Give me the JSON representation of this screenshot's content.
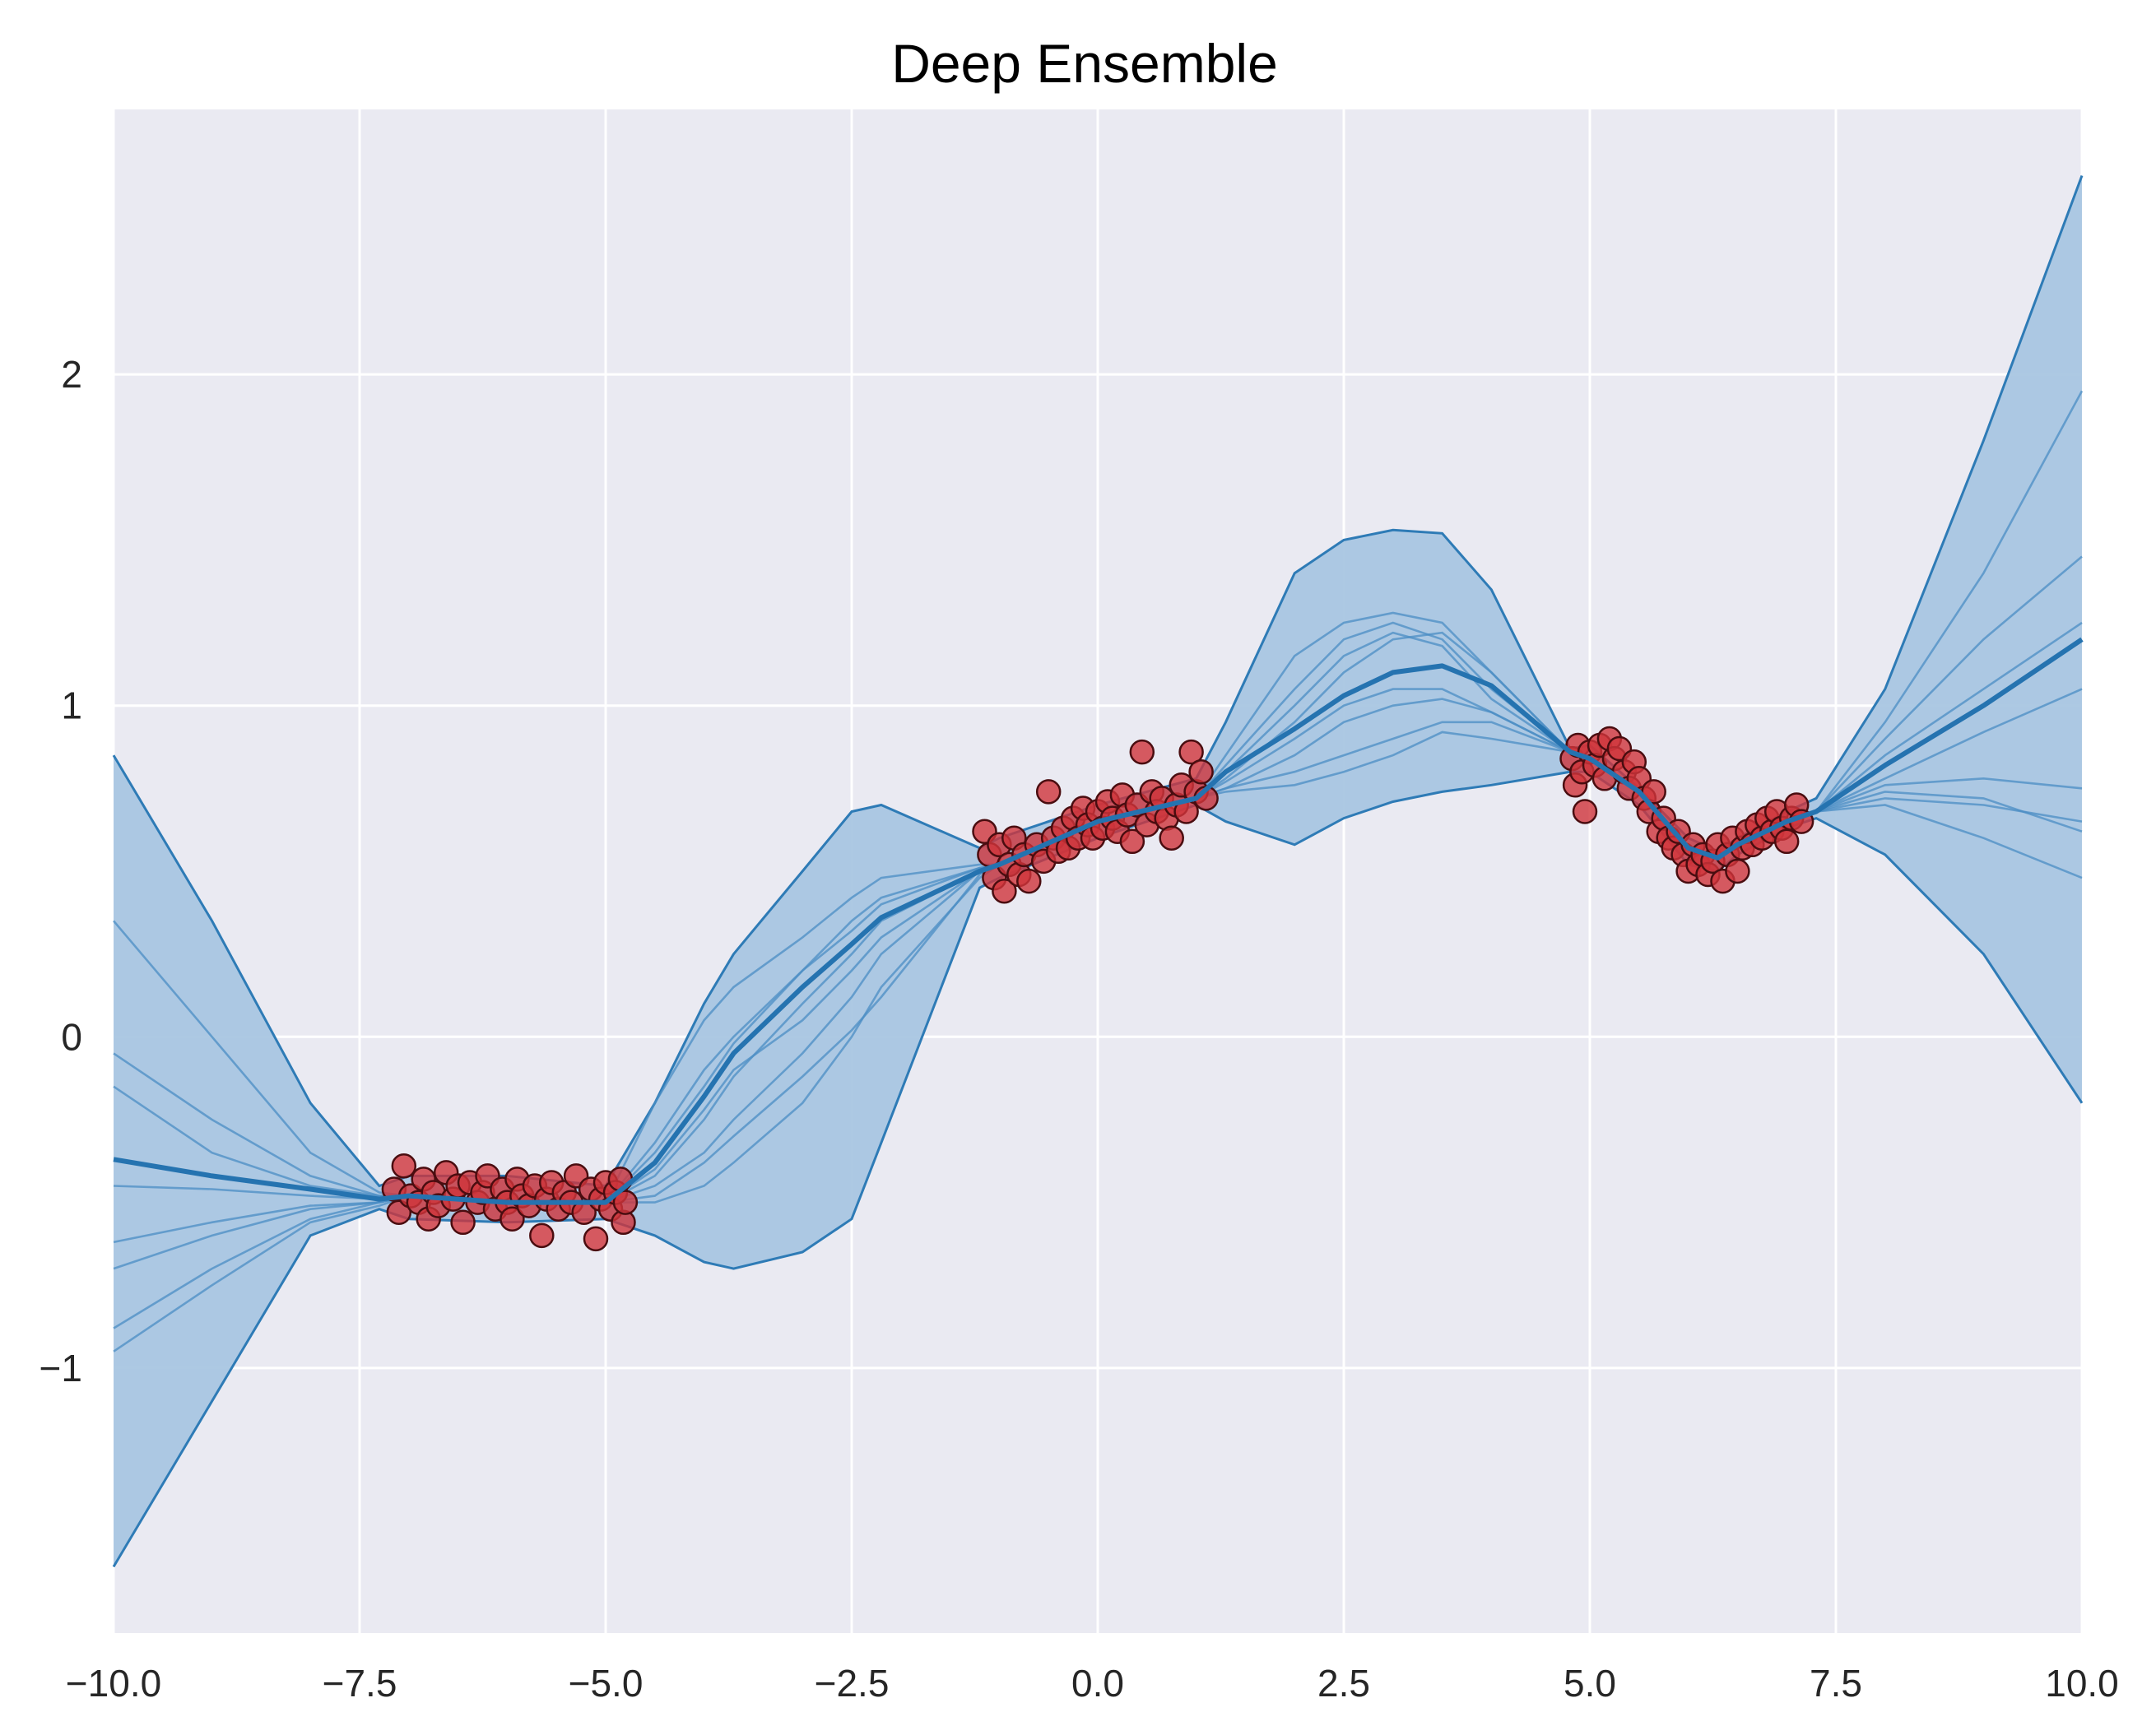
{
  "chart_data": {
    "type": "line",
    "title": "Deep Ensemble",
    "xlabel": "",
    "ylabel": "",
    "xlim": [
      -10,
      10
    ],
    "ylim": [
      -1.8,
      2.8
    ],
    "x_ticks": [
      -10.0,
      -7.5,
      -5.0,
      -2.5,
      0.0,
      2.5,
      5.0,
      7.5,
      10.0
    ],
    "x_tick_labels": [
      "−10.0",
      "−7.5",
      "−5.0",
      "−2.5",
      "0.0",
      "2.5",
      "5.0",
      "7.5",
      "10.0"
    ],
    "y_ticks": [
      -1,
      0,
      1,
      2
    ],
    "y_tick_labels": [
      "−1",
      "0",
      "1",
      "2"
    ],
    "grid": true,
    "legend": "none",
    "colors": {
      "background": "#eaeaf2",
      "grid": "#ffffff",
      "band_fill": "#a9c6e2",
      "band_edge": "#2e7bb6",
      "member_line": "#4b8dc4",
      "mean_line": "#2573b0",
      "point_fill": "#d0353b",
      "point_edge": "#4a0d10",
      "tick_text": "#262626"
    },
    "x": [
      -10,
      -9,
      -8,
      -7.3,
      -7,
      -6,
      -5,
      -4.5,
      -4,
      -3.7,
      -3,
      -2.5,
      -2.2,
      -1.2,
      -1,
      0,
      1,
      1.3,
      2,
      2.5,
      3,
      3.5,
      4,
      4.8,
      5,
      5.5,
      6,
      6.3,
      6.5,
      7,
      7.3,
      8,
      9,
      10
    ],
    "uncertainty_band": {
      "upper": [
        0.85,
        0.35,
        -0.2,
        -0.45,
        -0.42,
        -0.42,
        -0.45,
        -0.2,
        0.1,
        0.25,
        0.5,
        0.68,
        0.7,
        0.57,
        0.6,
        0.7,
        0.78,
        0.95,
        1.4,
        1.5,
        1.53,
        1.52,
        1.35,
        0.87,
        0.88,
        0.75,
        0.6,
        0.56,
        0.6,
        0.68,
        0.72,
        1.05,
        1.8,
        2.6
      ],
      "lower": [
        -1.6,
        -1.1,
        -0.6,
        -0.52,
        -0.55,
        -0.56,
        -0.55,
        -0.6,
        -0.68,
        -0.7,
        -0.65,
        -0.55,
        -0.32,
        0.45,
        0.48,
        0.6,
        0.7,
        0.65,
        0.58,
        0.66,
        0.71,
        0.74,
        0.76,
        0.8,
        0.8,
        0.7,
        0.52,
        0.5,
        0.55,
        0.63,
        0.66,
        0.55,
        0.25,
        -0.2
      ]
    },
    "mean": [
      -0.37,
      -0.42,
      -0.46,
      -0.49,
      -0.48,
      -0.5,
      -0.5,
      -0.38,
      -0.18,
      -0.05,
      0.15,
      0.28,
      0.36,
      0.5,
      0.52,
      0.65,
      0.72,
      0.8,
      0.93,
      1.03,
      1.1,
      1.12,
      1.06,
      0.86,
      0.84,
      0.74,
      0.57,
      0.54,
      0.58,
      0.65,
      0.68,
      0.82,
      1.0,
      1.2
    ],
    "members": [
      [
        -0.05,
        -0.25,
        -0.42,
        -0.48,
        -0.48,
        -0.5,
        -0.5,
        -0.2,
        0.05,
        0.15,
        0.3,
        0.42,
        0.48,
        0.52,
        0.52,
        0.65,
        0.72,
        0.85,
        1.15,
        1.25,
        1.28,
        1.25,
        1.1,
        0.86,
        0.84,
        0.74,
        0.57,
        0.54,
        0.58,
        0.65,
        0.68,
        0.95,
        1.4,
        1.95
      ],
      [
        0.35,
        0.0,
        -0.35,
        -0.47,
        -0.48,
        -0.5,
        -0.5,
        -0.32,
        -0.1,
        0.0,
        0.2,
        0.35,
        0.42,
        0.51,
        0.52,
        0.65,
        0.72,
        0.75,
        0.85,
        0.95,
        1.0,
        1.02,
        0.98,
        0.86,
        0.84,
        0.74,
        0.57,
        0.54,
        0.58,
        0.65,
        0.68,
        0.9,
        1.2,
        1.45
      ],
      [
        -0.15,
        -0.35,
        -0.45,
        -0.48,
        -0.48,
        -0.5,
        -0.5,
        -0.45,
        -0.35,
        -0.25,
        -0.05,
        0.12,
        0.25,
        0.5,
        0.52,
        0.65,
        0.72,
        0.82,
        1.05,
        1.2,
        1.25,
        1.2,
        1.05,
        0.86,
        0.84,
        0.74,
        0.57,
        0.54,
        0.58,
        0.65,
        0.68,
        0.85,
        1.05,
        1.25
      ],
      [
        -0.45,
        -0.46,
        -0.48,
        -0.49,
        -0.48,
        -0.5,
        -0.5,
        -0.5,
        -0.45,
        -0.38,
        -0.2,
        0.0,
        0.15,
        0.48,
        0.52,
        0.65,
        0.72,
        0.75,
        0.8,
        0.85,
        0.9,
        0.95,
        0.95,
        0.86,
        0.84,
        0.74,
        0.57,
        0.54,
        0.58,
        0.65,
        0.68,
        0.78,
        0.92,
        1.05
      ],
      [
        -0.62,
        -0.56,
        -0.51,
        -0.5,
        -0.48,
        -0.5,
        -0.5,
        -0.42,
        -0.25,
        -0.12,
        0.1,
        0.25,
        0.35,
        0.5,
        0.52,
        0.65,
        0.72,
        0.78,
        0.95,
        1.1,
        1.2,
        1.22,
        1.1,
        0.86,
        0.84,
        0.74,
        0.57,
        0.54,
        0.58,
        0.65,
        0.68,
        0.76,
        0.78,
        0.75
      ],
      [
        -0.7,
        -0.6,
        -0.52,
        -0.5,
        -0.48,
        -0.5,
        -0.5,
        -0.48,
        -0.38,
        -0.3,
        -0.12,
        0.02,
        0.12,
        0.49,
        0.52,
        0.65,
        0.72,
        0.74,
        0.76,
        0.8,
        0.85,
        0.92,
        0.9,
        0.86,
        0.84,
        0.74,
        0.57,
        0.54,
        0.58,
        0.65,
        0.68,
        0.72,
        0.7,
        0.65
      ],
      [
        -0.88,
        -0.7,
        -0.55,
        -0.5,
        -0.48,
        -0.5,
        -0.5,
        -0.35,
        -0.15,
        -0.02,
        0.2,
        0.32,
        0.4,
        0.51,
        0.52,
        0.65,
        0.72,
        0.8,
        1.0,
        1.15,
        1.22,
        1.18,
        1.02,
        0.86,
        0.84,
        0.74,
        0.57,
        0.54,
        0.58,
        0.65,
        0.68,
        0.7,
        0.6,
        0.48
      ],
      [
        -0.95,
        -0.75,
        -0.56,
        -0.51,
        -0.48,
        -0.5,
        -0.5,
        -0.4,
        -0.22,
        -0.1,
        0.05,
        0.2,
        0.3,
        0.5,
        0.52,
        0.65,
        0.72,
        0.77,
        0.9,
        1.0,
        1.05,
        1.05,
        0.98,
        0.86,
        0.84,
        0.74,
        0.57,
        0.54,
        0.58,
        0.65,
        0.68,
        0.74,
        0.72,
        0.62
      ]
    ],
    "scatter_points": [
      [
        -7.15,
        -0.46
      ],
      [
        -7.1,
        -0.53
      ],
      [
        -7.05,
        -0.39
      ],
      [
        -6.98,
        -0.48
      ],
      [
        -6.9,
        -0.5
      ],
      [
        -6.85,
        -0.43
      ],
      [
        -6.8,
        -0.55
      ],
      [
        -6.75,
        -0.47
      ],
      [
        -6.7,
        -0.51
      ],
      [
        -6.62,
        -0.41
      ],
      [
        -6.55,
        -0.49
      ],
      [
        -6.5,
        -0.45
      ],
      [
        -6.45,
        -0.56
      ],
      [
        -6.38,
        -0.44
      ],
      [
        -6.3,
        -0.5
      ],
      [
        -6.25,
        -0.47
      ],
      [
        -6.2,
        -0.42
      ],
      [
        -6.12,
        -0.52
      ],
      [
        -6.05,
        -0.46
      ],
      [
        -6.0,
        -0.5
      ],
      [
        -5.95,
        -0.55
      ],
      [
        -5.9,
        -0.43
      ],
      [
        -5.85,
        -0.48
      ],
      [
        -5.78,
        -0.51
      ],
      [
        -5.72,
        -0.45
      ],
      [
        -5.65,
        -0.6
      ],
      [
        -5.6,
        -0.49
      ],
      [
        -5.55,
        -0.44
      ],
      [
        -5.48,
        -0.52
      ],
      [
        -5.42,
        -0.47
      ],
      [
        -5.35,
        -0.5
      ],
      [
        -5.3,
        -0.42
      ],
      [
        -5.22,
        -0.53
      ],
      [
        -5.15,
        -0.46
      ],
      [
        -5.1,
        -0.61
      ],
      [
        -5.05,
        -0.49
      ],
      [
        -5.0,
        -0.44
      ],
      [
        -4.95,
        -0.52
      ],
      [
        -4.9,
        -0.47
      ],
      [
        -4.85,
        -0.43
      ],
      [
        -4.82,
        -0.56
      ],
      [
        -4.8,
        -0.5
      ],
      [
        -1.15,
        0.62
      ],
      [
        -1.1,
        0.55
      ],
      [
        -1.05,
        0.48
      ],
      [
        -1.0,
        0.58
      ],
      [
        -0.95,
        0.44
      ],
      [
        -0.9,
        0.52
      ],
      [
        -0.85,
        0.6
      ],
      [
        -0.8,
        0.49
      ],
      [
        -0.75,
        0.55
      ],
      [
        -0.7,
        0.47
      ],
      [
        -0.62,
        0.58
      ],
      [
        -0.55,
        0.53
      ],
      [
        -0.5,
        0.74
      ],
      [
        -0.45,
        0.6
      ],
      [
        -0.4,
        0.56
      ],
      [
        -0.35,
        0.63
      ],
      [
        -0.3,
        0.57
      ],
      [
        -0.25,
        0.66
      ],
      [
        -0.2,
        0.6
      ],
      [
        -0.15,
        0.69
      ],
      [
        -0.1,
        0.64
      ],
      [
        -0.05,
        0.6
      ],
      [
        0.0,
        0.68
      ],
      [
        0.05,
        0.63
      ],
      [
        0.1,
        0.71
      ],
      [
        0.15,
        0.66
      ],
      [
        0.2,
        0.62
      ],
      [
        0.25,
        0.73
      ],
      [
        0.3,
        0.67
      ],
      [
        0.35,
        0.59
      ],
      [
        0.4,
        0.7
      ],
      [
        0.45,
        0.86
      ],
      [
        0.5,
        0.64
      ],
      [
        0.55,
        0.74
      ],
      [
        0.6,
        0.68
      ],
      [
        0.65,
        0.72
      ],
      [
        0.7,
        0.66
      ],
      [
        0.75,
        0.6
      ],
      [
        0.8,
        0.7
      ],
      [
        0.85,
        0.76
      ],
      [
        0.9,
        0.68
      ],
      [
        0.95,
        0.86
      ],
      [
        1.0,
        0.74
      ],
      [
        1.05,
        0.8
      ],
      [
        1.1,
        0.72
      ],
      [
        4.82,
        0.84
      ],
      [
        4.85,
        0.76
      ],
      [
        4.88,
        0.88
      ],
      [
        4.92,
        0.8
      ],
      [
        4.95,
        0.68
      ],
      [
        5.0,
        0.86
      ],
      [
        5.05,
        0.82
      ],
      [
        5.1,
        0.88
      ],
      [
        5.15,
        0.78
      ],
      [
        5.2,
        0.9
      ],
      [
        5.25,
        0.84
      ],
      [
        5.3,
        0.87
      ],
      [
        5.35,
        0.8
      ],
      [
        5.4,
        0.75
      ],
      [
        5.45,
        0.83
      ],
      [
        5.5,
        0.78
      ],
      [
        5.55,
        0.72
      ],
      [
        5.6,
        0.68
      ],
      [
        5.65,
        0.74
      ],
      [
        5.7,
        0.62
      ],
      [
        5.75,
        0.66
      ],
      [
        5.8,
        0.6
      ],
      [
        5.85,
        0.57
      ],
      [
        5.9,
        0.62
      ],
      [
        5.95,
        0.55
      ],
      [
        6.0,
        0.5
      ],
      [
        6.05,
        0.58
      ],
      [
        6.1,
        0.52
      ],
      [
        6.15,
        0.55
      ],
      [
        6.2,
        0.49
      ],
      [
        6.25,
        0.53
      ],
      [
        6.3,
        0.58
      ],
      [
        6.35,
        0.47
      ],
      [
        6.4,
        0.55
      ],
      [
        6.45,
        0.6
      ],
      [
        6.5,
        0.5
      ],
      [
        6.55,
        0.57
      ],
      [
        6.6,
        0.62
      ],
      [
        6.65,
        0.58
      ],
      [
        6.7,
        0.64
      ],
      [
        6.75,
        0.6
      ],
      [
        6.8,
        0.66
      ],
      [
        6.85,
        0.62
      ],
      [
        6.9,
        0.68
      ],
      [
        6.95,
        0.63
      ],
      [
        7.0,
        0.59
      ],
      [
        7.05,
        0.66
      ],
      [
        7.1,
        0.7
      ],
      [
        7.15,
        0.65
      ]
    ]
  }
}
